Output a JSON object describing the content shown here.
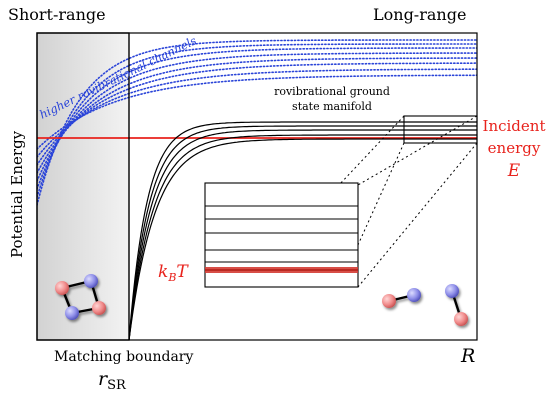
{
  "labels": {
    "short_range": "Short-range",
    "long_range": "Long-range",
    "y_axis": "Potential Energy",
    "x_axis": "R",
    "boundary_label": "Matching boundary",
    "boundary_symbol": "r",
    "boundary_subscript": "SR",
    "higher_channels": "higher rovibrational channels",
    "ground_line1": "rovibrational ground",
    "ground_line2": "state manifold",
    "incident_line1": "Incident",
    "incident_line2": "energy",
    "incident_symbol": "E",
    "thermal_k": "k",
    "thermal_sub": "B",
    "thermal_T": "T"
  },
  "colors": {
    "incident": "#e8231d",
    "channels": "#2a44d8",
    "curves": "#000000",
    "shade": "#e7e7e7",
    "atom_red": "#f08a8a",
    "atom_blue": "#8d8de8"
  },
  "icons": {
    "tetramer": "molecule-four-atom-icon",
    "dimer_left": "molecule-dimer-icon",
    "dimer_right": "molecule-dimer-icon"
  }
}
